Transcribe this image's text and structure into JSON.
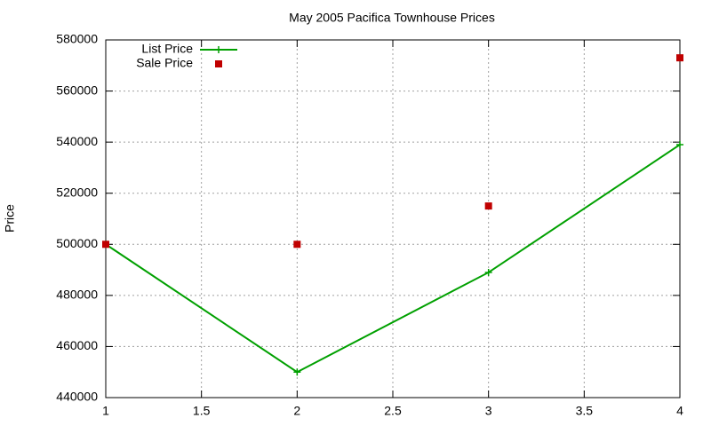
{
  "chart_data": {
    "type": "line",
    "title": "May 2005 Pacifica Townhouse Prices",
    "ylabel": "Price",
    "x": [
      1,
      2,
      3,
      4
    ],
    "series": [
      {
        "name": "List Price",
        "color": "#00a000",
        "mode": "lines+markers",
        "values": [
          500000,
          450000,
          489000,
          539000
        ]
      },
      {
        "name": "Sale Price",
        "color": "#c00000",
        "mode": "markers",
        "values": [
          500000,
          500000,
          515000,
          573000
        ]
      }
    ],
    "xlim": [
      1,
      4
    ],
    "xticks": [
      1,
      1.5,
      2,
      2.5,
      3,
      3.5,
      4
    ],
    "ylim": [
      440000,
      580000
    ],
    "yticks": [
      440000,
      460000,
      480000,
      500000,
      520000,
      540000,
      560000,
      580000
    ],
    "grid": true,
    "legend": "top-left"
  }
}
